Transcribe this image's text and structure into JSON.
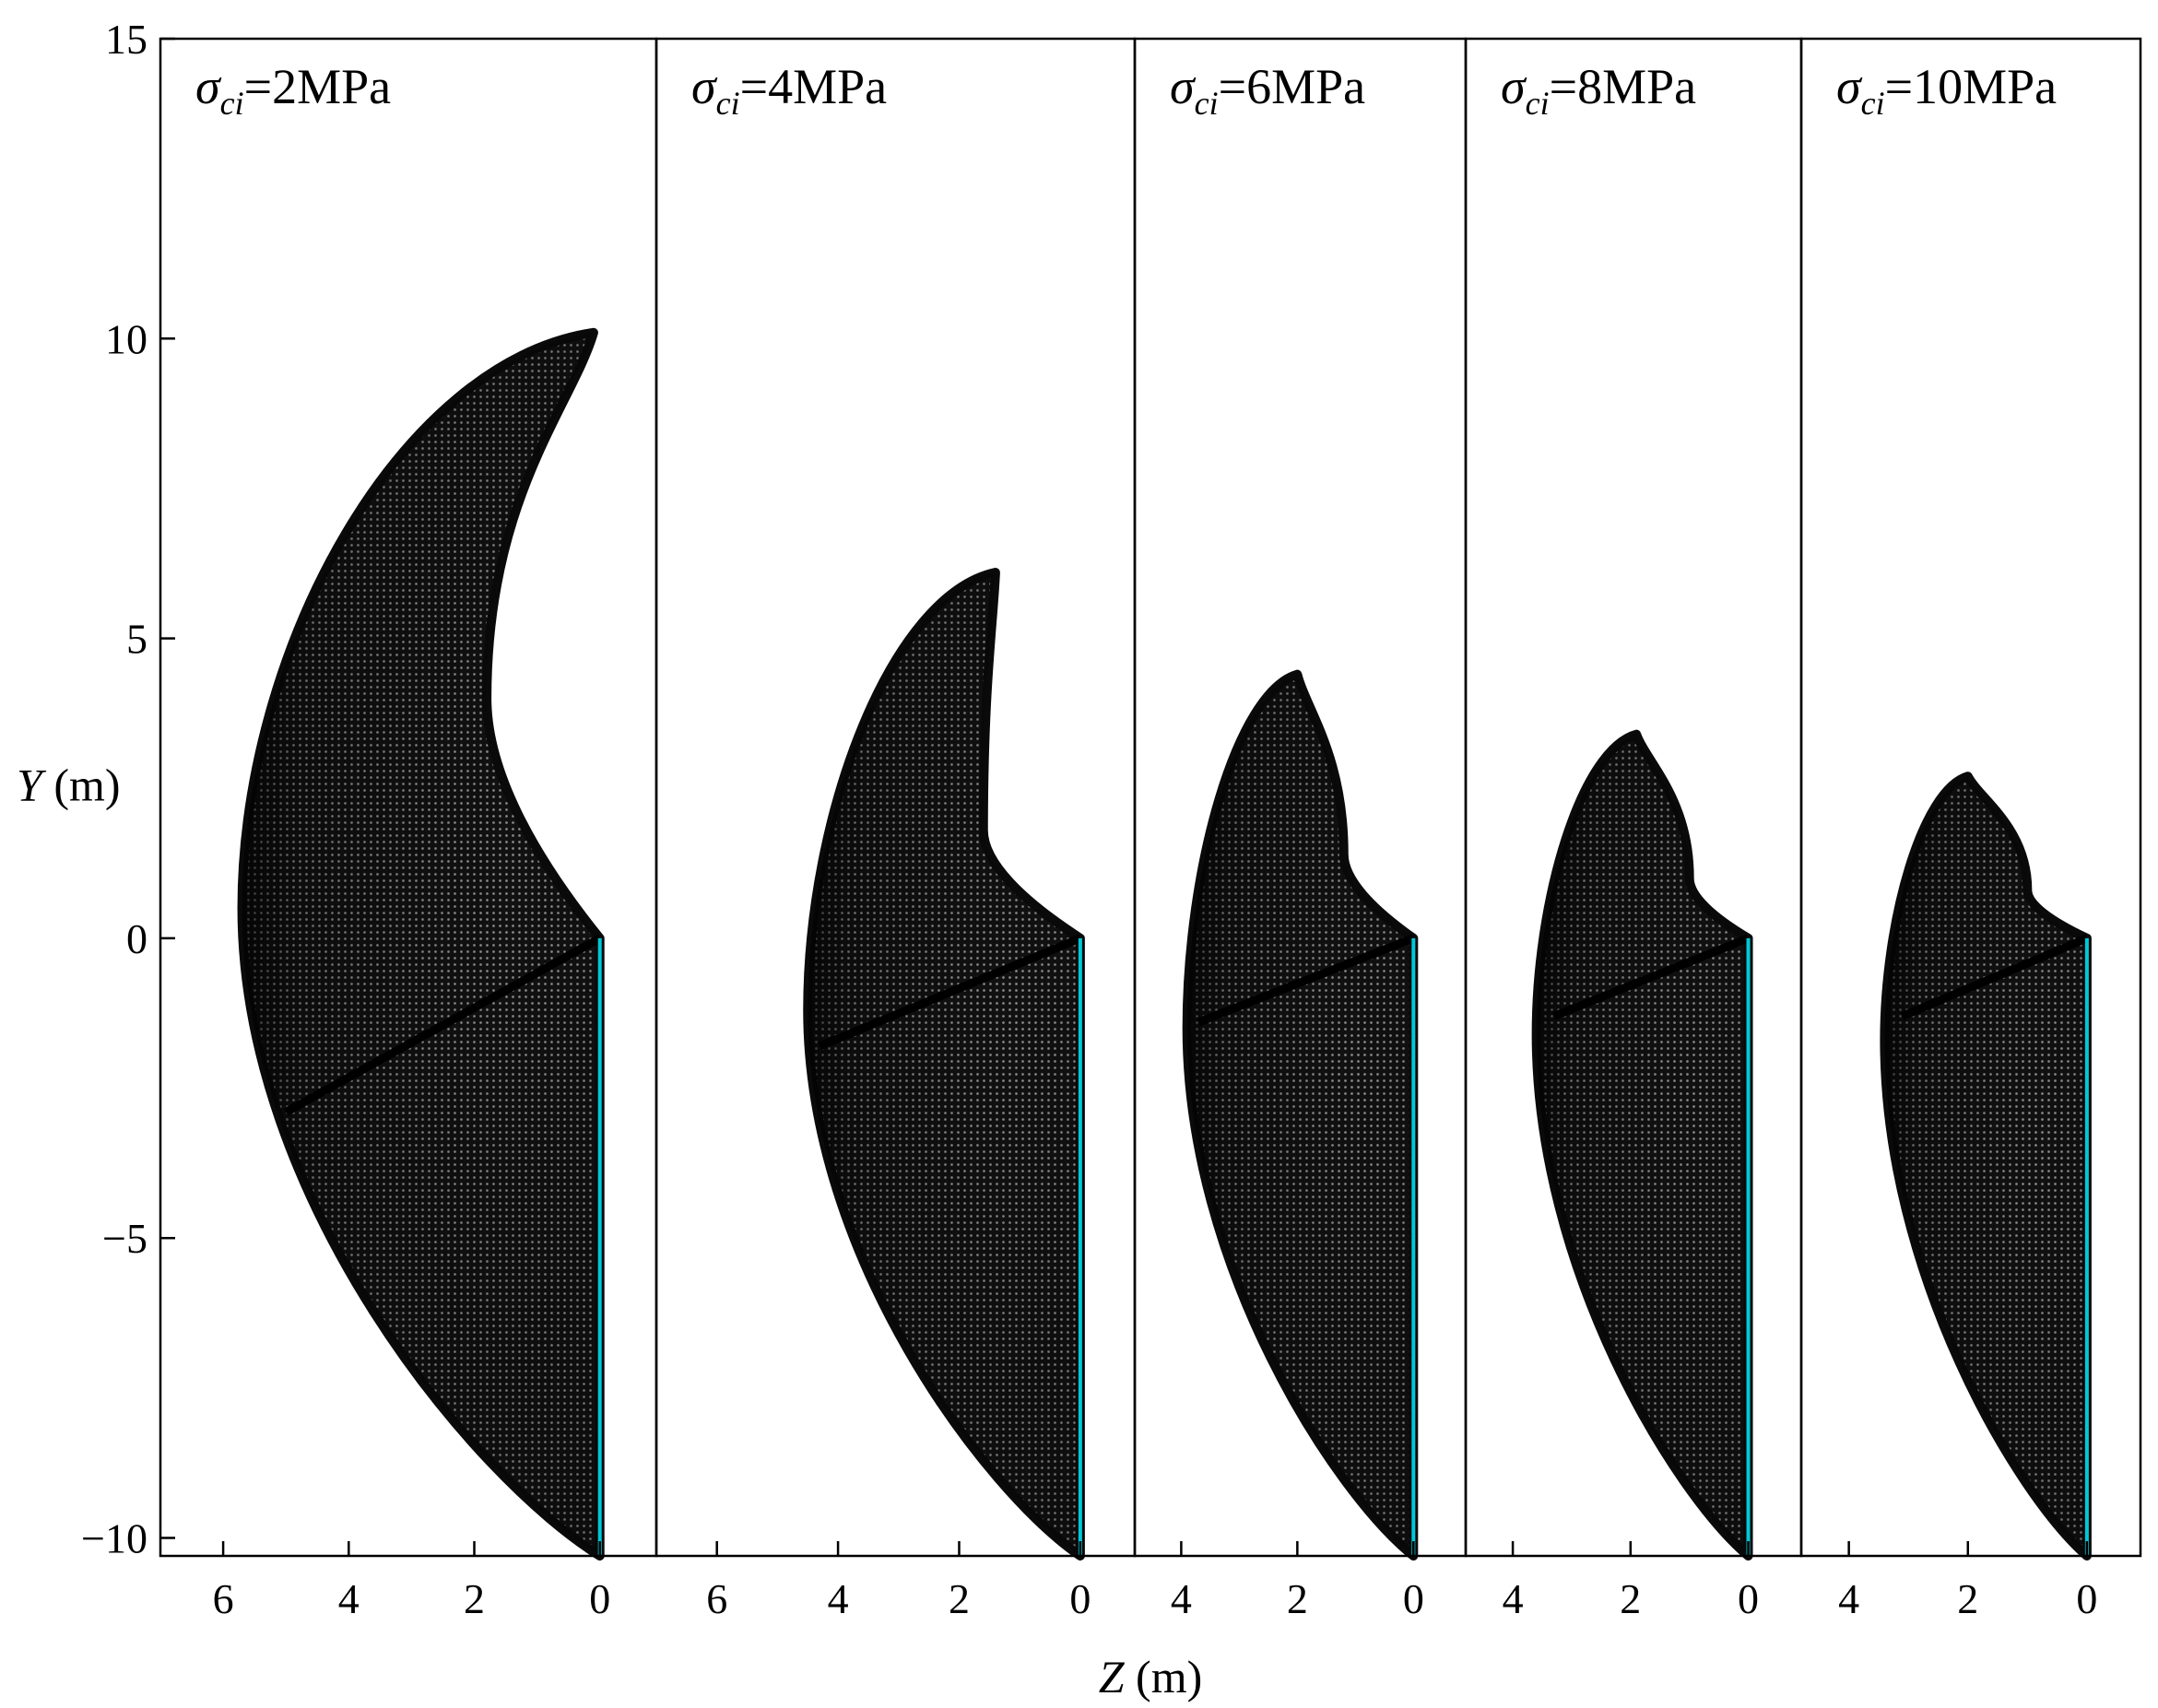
{
  "chart_data": {
    "type": "area",
    "title": "",
    "ylabel": {
      "var": "Y",
      "unit": " (m)"
    },
    "xlabel": {
      "var": "Z",
      "unit": " (m)"
    },
    "ylim": [
      -10.3,
      15
    ],
    "yticks": [
      -10,
      -5,
      0,
      5,
      10,
      15
    ],
    "yticklabels": [
      "−10",
      "−5",
      "0",
      "5",
      "10",
      "15"
    ],
    "grid": false,
    "colors": {
      "mesh": "#0a0a0a",
      "mesh_light": "#9a9a9a",
      "wall": "#00c8d8",
      "frame": "#000000"
    },
    "panels": [
      {
        "label": {
          "sym": "σ",
          "sub": "ci",
          "text": "=2MPa"
        },
        "zlim": [
          7.0,
          -0.9
        ],
        "zticks": [
          6,
          4,
          2,
          0
        ],
        "zticklabels": [
          "6",
          "4",
          "2",
          "0"
        ],
        "apex": [
          0.1,
          10.1
        ],
        "left_extreme": [
          5.7,
          0.5
        ],
        "division": [
          5.0,
          -2.9
        ],
        "inner_mid": [
          1.8,
          4.0
        ],
        "bottom": -10.3
      },
      {
        "label": {
          "sym": "σ",
          "sub": "ci",
          "text": "=4MPa"
        },
        "zlim": [
          7.0,
          -0.9
        ],
        "zticks": [
          6,
          4,
          2,
          0
        ],
        "zticklabels": [
          "6",
          "4",
          "2",
          "0"
        ],
        "apex": [
          1.4,
          6.1
        ],
        "left_extreme": [
          4.5,
          -1.2
        ],
        "division": [
          4.3,
          -1.8
        ],
        "inner_mid": [
          1.6,
          1.8
        ],
        "bottom": -10.3
      },
      {
        "label": {
          "sym": "σ",
          "sub": "ci",
          "text": "=6MPa"
        },
        "zlim": [
          4.8,
          -0.9
        ],
        "zticks": [
          4,
          2,
          0
        ],
        "zticklabels": [
          "4",
          "2",
          "0"
        ],
        "apex": [
          2.0,
          4.4
        ],
        "left_extreme": [
          3.9,
          -1.5
        ],
        "division": [
          3.7,
          -1.4
        ],
        "inner_mid": [
          1.2,
          1.4
        ],
        "bottom": -10.3
      },
      {
        "label": {
          "sym": "σ",
          "sub": "ci",
          "text": "=8MPa"
        },
        "zlim": [
          4.8,
          -0.9
        ],
        "zticks": [
          4,
          2,
          0
        ],
        "zticklabels": [
          "4",
          "2",
          "0"
        ],
        "apex": [
          1.9,
          3.4
        ],
        "left_extreme": [
          3.6,
          -1.6
        ],
        "division": [
          3.3,
          -1.3
        ],
        "inner_mid": [
          1.0,
          1.0
        ],
        "bottom": -10.3
      },
      {
        "label": {
          "sym": "σ",
          "sub": "ci",
          "text": "=10MPa"
        },
        "zlim": [
          4.8,
          -0.9
        ],
        "zticks": [
          4,
          2,
          0
        ],
        "zticklabels": [
          "4",
          "2",
          "0"
        ],
        "apex": [
          2.0,
          2.7
        ],
        "left_extreme": [
          3.4,
          -1.7
        ],
        "division": [
          3.1,
          -1.3
        ],
        "inner_mid": [
          1.0,
          0.8
        ],
        "bottom": -10.3
      }
    ]
  }
}
